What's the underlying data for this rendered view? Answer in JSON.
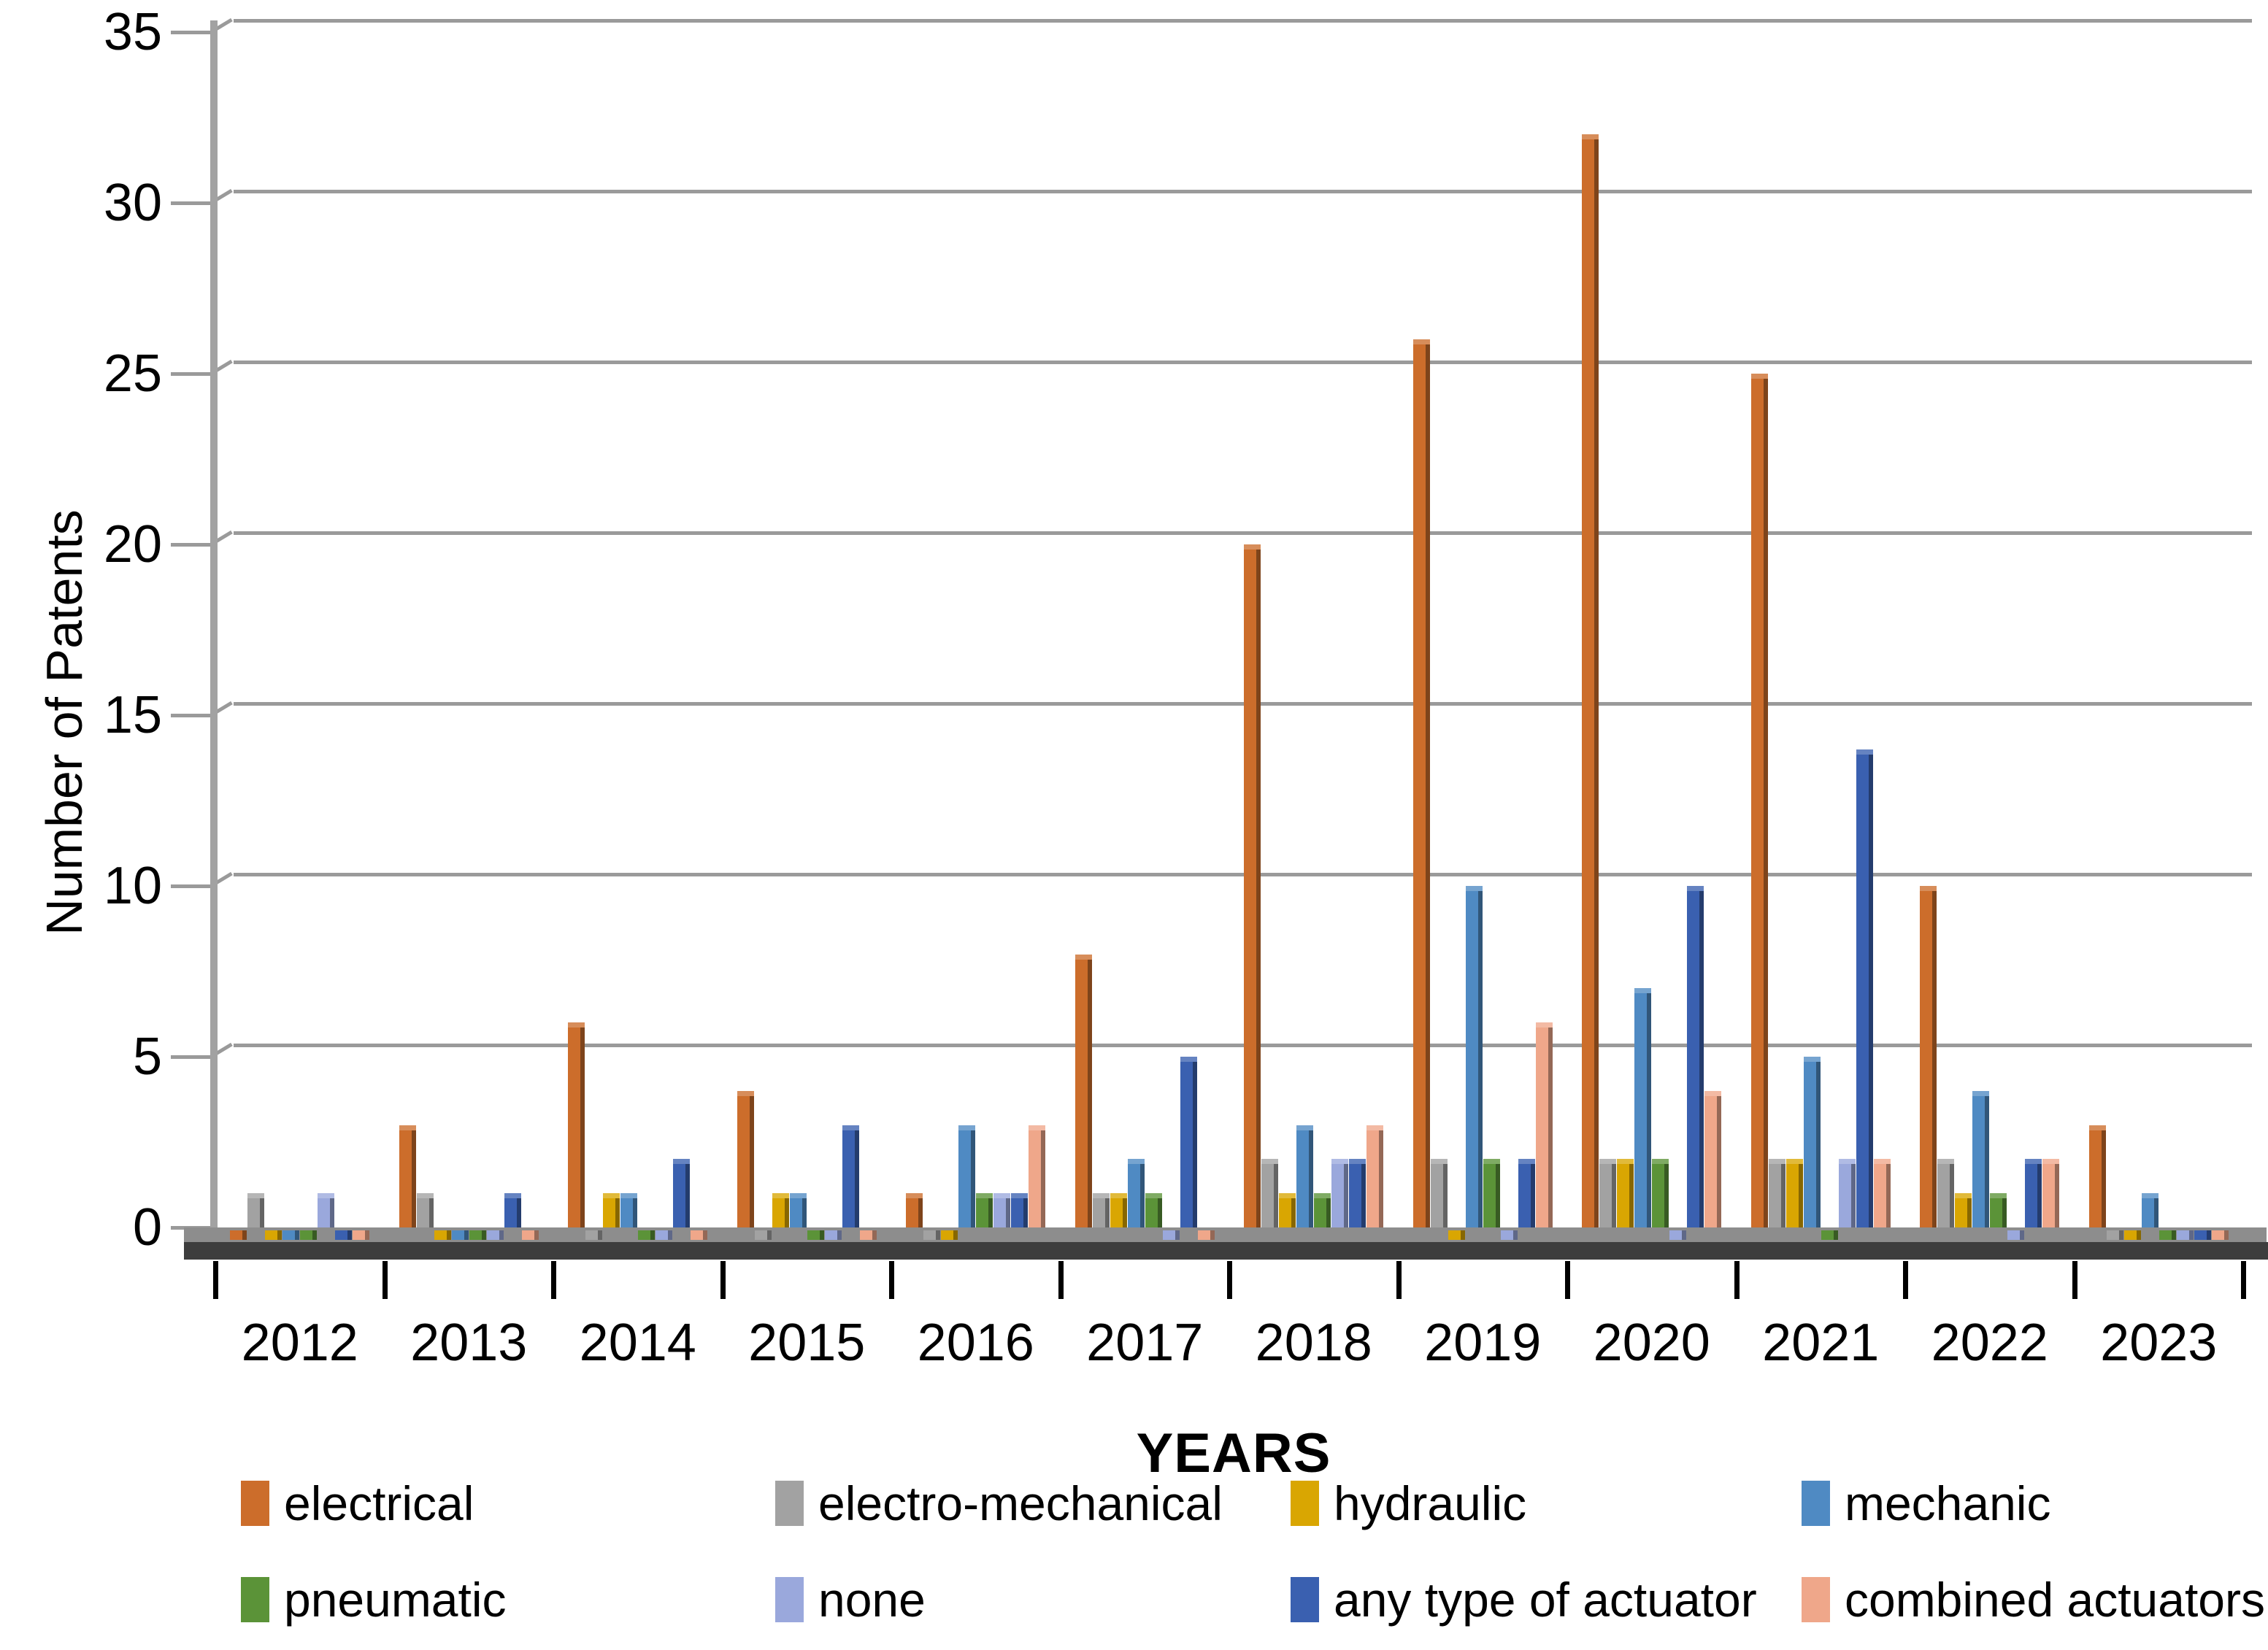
{
  "chart_data": {
    "type": "bar",
    "title": "",
    "xlabel": "YEARS",
    "ylabel": "Number of Patents",
    "ylim": [
      0,
      35
    ],
    "ytick_step": 5,
    "yticks": [
      0,
      5,
      10,
      15,
      20,
      25,
      30,
      35
    ],
    "grid": true,
    "legend_position": "bottom",
    "categories": [
      "2012",
      "2013",
      "2014",
      "2015",
      "2016",
      "2017",
      "2018",
      "2019",
      "2020",
      "2021",
      "2022",
      "2023"
    ],
    "series": [
      {
        "name": "electrical",
        "color": "#CC6D2B",
        "values": [
          0,
          3,
          6,
          4,
          1,
          8,
          20,
          26,
          32,
          25,
          10,
          3
        ]
      },
      {
        "name": "electro-mechanical",
        "color": "#A2A2A2",
        "values": [
          1,
          1,
          0,
          0,
          0,
          1,
          2,
          2,
          2,
          2,
          2,
          0
        ]
      },
      {
        "name": "hydraulic",
        "color": "#D9A602",
        "values": [
          0,
          0,
          1,
          1,
          0,
          1,
          1,
          0,
          2,
          2,
          1,
          0
        ]
      },
      {
        "name": "mechanic",
        "color": "#4F8AC3",
        "values": [
          0,
          0,
          1,
          1,
          3,
          2,
          3,
          10,
          7,
          5,
          4,
          1
        ]
      },
      {
        "name": "pneumatic",
        "color": "#5B9338",
        "values": [
          0,
          0,
          0,
          0,
          1,
          1,
          1,
          2,
          2,
          0,
          1,
          0
        ]
      },
      {
        "name": "none",
        "color": "#9AA8DC",
        "values": [
          1,
          0,
          0,
          0,
          1,
          0,
          2,
          0,
          0,
          2,
          0,
          0
        ]
      },
      {
        "name": "any type of actuator",
        "color": "#3A60B0",
        "values": [
          0,
          1,
          2,
          3,
          1,
          5,
          2,
          2,
          10,
          14,
          2,
          0
        ]
      },
      {
        "name": "combined actuators",
        "color": "#EFA78A",
        "values": [
          0,
          0,
          0,
          0,
          3,
          0,
          3,
          6,
          4,
          2,
          2,
          0
        ]
      }
    ],
    "legend_rows": [
      [
        "electrical",
        "electro-mechanical",
        "hydraulic",
        "mechanic"
      ],
      [
        "pneumatic",
        "none",
        "any type of actuator",
        "combined actuators"
      ]
    ]
  },
  "style_colors": {
    "gridline": "#9a9a9a",
    "wall": "#a2a2a2",
    "floor_top": "#8d8d8d",
    "floor_front": "#3d3d3d",
    "tick": "#000000"
  }
}
